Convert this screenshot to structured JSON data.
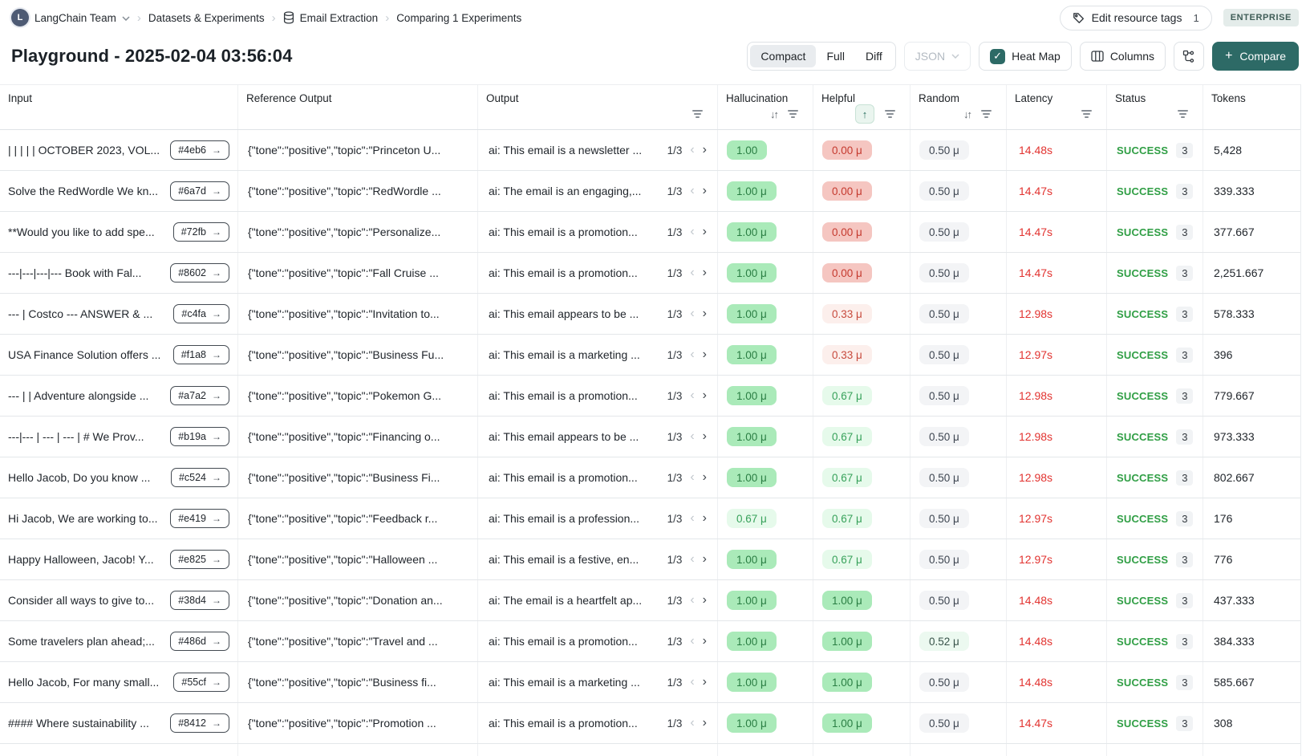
{
  "breadcrumb": {
    "avatar_letter": "L",
    "team": "LangChain Team",
    "datasets": "Datasets & Experiments",
    "dataset_name": "Email Extraction",
    "comparing": "Comparing 1 Experiments"
  },
  "header_actions": {
    "edit_tags": "Edit resource tags",
    "edit_tags_count": "1",
    "plan": "ENTERPRISE"
  },
  "page": {
    "title": "Playground - 2025-02-04 03:56:04"
  },
  "toolbar": {
    "compact": "Compact",
    "full": "Full",
    "diff": "Diff",
    "json": "JSON",
    "heat_map": "Heat Map",
    "heat_map_checked": "✓",
    "columns": "Columns",
    "plus": "+",
    "compare": "Compare"
  },
  "table": {
    "pagination_prev": "‹",
    "pagination_next": "›",
    "badge_arrow": "→",
    "sort_icon_glyph": "↓↑",
    "sort_asc_glyph": "↑",
    "columns": [
      {
        "key": "input",
        "label": "Input",
        "icons": []
      },
      {
        "key": "reference-output",
        "label": "Reference Output",
        "icons": []
      },
      {
        "key": "output",
        "label": "Output",
        "icons": [
          "filter"
        ]
      },
      {
        "key": "hallucination",
        "label": "Hallucination",
        "icons": [
          "sort",
          "filter"
        ]
      },
      {
        "key": "helpful",
        "label": "Helpful",
        "icons": [
          "sort-asc",
          "filter"
        ]
      },
      {
        "key": "random",
        "label": "Random",
        "icons": [
          "sort",
          "filter"
        ]
      },
      {
        "key": "latency",
        "label": "Latency",
        "icons": [
          "filter"
        ]
      },
      {
        "key": "status",
        "label": "Status",
        "icons": [
          "filter"
        ]
      },
      {
        "key": "tokens",
        "label": "Tokens",
        "icons": []
      }
    ],
    "rows": [
      {
        "input": "| | | | | OCTOBER 2023, VOL...",
        "id": "#4eb6",
        "ref": "{\"tone\":\"positive\",\"topic\":\"Princeton U...",
        "output": "ai: This email is a newsletter ...",
        "page": "1/3",
        "hall": [
          "1.00",
          "green"
        ],
        "help": [
          "0.00 μ",
          "red"
        ],
        "rand": [
          "0.50 μ",
          "neutral"
        ],
        "latency": "14.48s",
        "status": "SUCCESS",
        "runs": "3",
        "tokens": "5,428"
      },
      {
        "input": "Solve the RedWordle We kn...",
        "id": "#6a7d",
        "ref": "{\"tone\":\"positive\",\"topic\":\"RedWordle ...",
        "output": "ai: The email is an engaging,...",
        "page": "1/3",
        "hall": [
          "1.00 μ",
          "green"
        ],
        "help": [
          "0.00 μ",
          "red"
        ],
        "rand": [
          "0.50 μ",
          "neutral"
        ],
        "latency": "14.47s",
        "status": "SUCCESS",
        "runs": "3",
        "tokens": "339.333"
      },
      {
        "input": "**Would you like to add spe...",
        "id": "#72fb",
        "ref": "{\"tone\":\"positive\",\"topic\":\"Personalize...",
        "output": "ai: This email is a promotion...",
        "page": "1/3",
        "hall": [
          "1.00 μ",
          "green"
        ],
        "help": [
          "0.00 μ",
          "red"
        ],
        "rand": [
          "0.50 μ",
          "neutral"
        ],
        "latency": "14.47s",
        "status": "SUCCESS",
        "runs": "3",
        "tokens": "377.667"
      },
      {
        "input": "---|---|---|--- Book with Fal...",
        "id": "#8602",
        "ref": "{\"tone\":\"positive\",\"topic\":\"Fall Cruise ...",
        "output": "ai: This email is a promotion...",
        "page": "1/3",
        "hall": [
          "1.00 μ",
          "green"
        ],
        "help": [
          "0.00 μ",
          "red"
        ],
        "rand": [
          "0.50 μ",
          "neutral"
        ],
        "latency": "14.47s",
        "status": "SUCCESS",
        "runs": "3",
        "tokens": "2,251.667"
      },
      {
        "input": "--- | Costco --- ANSWER & ...",
        "id": "#c4fa",
        "ref": "{\"tone\":\"positive\",\"topic\":\"Invitation to...",
        "output": "ai: This email appears to be ...",
        "page": "1/3",
        "hall": [
          "1.00 μ",
          "green"
        ],
        "help": [
          "0.33 μ",
          "red-light"
        ],
        "rand": [
          "0.50 μ",
          "neutral"
        ],
        "latency": "12.98s",
        "status": "SUCCESS",
        "runs": "3",
        "tokens": "578.333"
      },
      {
        "input": "USA Finance Solution offers ...",
        "id": "#f1a8",
        "ref": "{\"tone\":\"positive\",\"topic\":\"Business Fu...",
        "output": "ai: This email is a marketing ...",
        "page": "1/3",
        "hall": [
          "1.00 μ",
          "green"
        ],
        "help": [
          "0.33 μ",
          "red-light"
        ],
        "rand": [
          "0.50 μ",
          "neutral"
        ],
        "latency": "12.97s",
        "status": "SUCCESS",
        "runs": "3",
        "tokens": "396"
      },
      {
        "input": "--- | | Adventure alongside ...",
        "id": "#a7a2",
        "ref": "{\"tone\":\"positive\",\"topic\":\"Pokemon G...",
        "output": "ai: This email is a promotion...",
        "page": "1/3",
        "hall": [
          "1.00 μ",
          "green"
        ],
        "help": [
          "0.67 μ",
          "green-light"
        ],
        "rand": [
          "0.50 μ",
          "neutral"
        ],
        "latency": "12.98s",
        "status": "SUCCESS",
        "runs": "3",
        "tokens": "779.667"
      },
      {
        "input": "---|--- | --- | --- | # We Prov...",
        "id": "#b19a",
        "ref": "{\"tone\":\"positive\",\"topic\":\"Financing o...",
        "output": "ai: This email appears to be ...",
        "page": "1/3",
        "hall": [
          "1.00 μ",
          "green"
        ],
        "help": [
          "0.67 μ",
          "green-light"
        ],
        "rand": [
          "0.50 μ",
          "neutral"
        ],
        "latency": "12.98s",
        "status": "SUCCESS",
        "runs": "3",
        "tokens": "973.333"
      },
      {
        "input": "Hello Jacob, Do you know ...",
        "id": "#c524",
        "ref": "{\"tone\":\"positive\",\"topic\":\"Business Fi...",
        "output": "ai: This email is a promotion...",
        "page": "1/3",
        "hall": [
          "1.00 μ",
          "green"
        ],
        "help": [
          "0.67 μ",
          "green-light"
        ],
        "rand": [
          "0.50 μ",
          "neutral"
        ],
        "latency": "12.98s",
        "status": "SUCCESS",
        "runs": "3",
        "tokens": "802.667"
      },
      {
        "input": "Hi Jacob, We are working to...",
        "id": "#e419",
        "ref": "{\"tone\":\"positive\",\"topic\":\"Feedback r...",
        "output": "ai: This email is a profession...",
        "page": "1/3",
        "hall": [
          "0.67 μ",
          "green-light"
        ],
        "help": [
          "0.67 μ",
          "green-light"
        ],
        "rand": [
          "0.50 μ",
          "neutral"
        ],
        "latency": "12.97s",
        "status": "SUCCESS",
        "runs": "3",
        "tokens": "176"
      },
      {
        "input": "Happy Halloween, Jacob! Y...",
        "id": "#e825",
        "ref": "{\"tone\":\"positive\",\"topic\":\"Halloween ...",
        "output": "ai: This email is a festive, en...",
        "page": "1/3",
        "hall": [
          "1.00 μ",
          "green"
        ],
        "help": [
          "0.67 μ",
          "green-light"
        ],
        "rand": [
          "0.50 μ",
          "neutral"
        ],
        "latency": "12.97s",
        "status": "SUCCESS",
        "runs": "3",
        "tokens": "776"
      },
      {
        "input": "Consider all ways to give to...",
        "id": "#38d4",
        "ref": "{\"tone\":\"positive\",\"topic\":\"Donation an...",
        "output": "ai: The email is a heartfelt ap...",
        "page": "1/3",
        "hall": [
          "1.00 μ",
          "green"
        ],
        "help": [
          "1.00 μ",
          "green"
        ],
        "rand": [
          "0.50 μ",
          "neutral"
        ],
        "latency": "14.48s",
        "status": "SUCCESS",
        "runs": "3",
        "tokens": "437.333"
      },
      {
        "input": "Some travelers plan ahead;...",
        "id": "#486d",
        "ref": "{\"tone\":\"positive\",\"topic\":\"Travel and ...",
        "output": "ai: This email is a promotion...",
        "page": "1/3",
        "hall": [
          "1.00 μ",
          "green"
        ],
        "help": [
          "1.00 μ",
          "green"
        ],
        "rand": [
          "0.52 μ",
          "green-tint"
        ],
        "latency": "14.48s",
        "status": "SUCCESS",
        "runs": "3",
        "tokens": "384.333"
      },
      {
        "input": "Hello Jacob, For many small...",
        "id": "#55cf",
        "ref": "{\"tone\":\"positive\",\"topic\":\"Business fi...",
        "output": "ai: This email is a marketing ...",
        "page": "1/3",
        "hall": [
          "1.00 μ",
          "green"
        ],
        "help": [
          "1.00 μ",
          "green"
        ],
        "rand": [
          "0.50 μ",
          "neutral"
        ],
        "latency": "14.48s",
        "status": "SUCCESS",
        "runs": "3",
        "tokens": "585.667"
      },
      {
        "input": "#### Where sustainability ...",
        "id": "#8412",
        "ref": "{\"tone\":\"positive\",\"topic\":\"Promotion ...",
        "output": "ai: This email is a promotion...",
        "page": "1/3",
        "hall": [
          "1.00 μ",
          "green"
        ],
        "help": [
          "1.00 μ",
          "green"
        ],
        "rand": [
          "0.50 μ",
          "neutral"
        ],
        "latency": "14.47s",
        "status": "SUCCESS",
        "runs": "3",
        "tokens": "308"
      }
    ]
  }
}
